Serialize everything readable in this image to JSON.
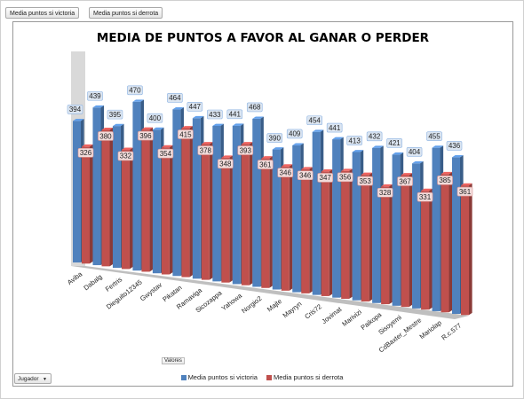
{
  "filter_buttons": {
    "victory": "Media puntos si victoria",
    "defeat": "Media puntos si derrota"
  },
  "colors": {
    "victory": "#4f81bd",
    "defeat": "#c0504d",
    "wall": "#d9d9d9",
    "floor": "#bfbfbf"
  },
  "chart_data": {
    "type": "bar",
    "title": "MEDIA DE PUNTOS A FAVOR AL GANAR O PERDER",
    "categories": [
      "Aviba",
      "Dabalg",
      "Fertris",
      "Dieguito12345",
      "Gwystav",
      "Pikatan",
      "Ramaviga",
      "Sicozappa",
      "Yahowa",
      "Norgio2",
      "Majte",
      "Mayryn",
      "Cris72",
      "Jovimat",
      "Marivizi",
      "Paikopa",
      "Sisoyemi",
      "CdBaxter_Mestre",
      "Mariolap",
      "R.c.577"
    ],
    "series": [
      {
        "name": "Media puntos si victoria",
        "values": [
          394,
          439,
          395,
          470,
          400,
          464,
          447,
          433,
          441,
          468,
          390,
          409,
          454,
          441,
          413,
          432,
          421,
          404,
          455,
          436
        ]
      },
      {
        "name": "Media puntos si derrota",
        "values": [
          326,
          380,
          332,
          396,
          354,
          415,
          378,
          348,
          393,
          361,
          346,
          346,
          347,
          356,
          353,
          328,
          367,
          331,
          385,
          361
        ]
      }
    ],
    "ylim": [
      0,
      500
    ],
    "grid": false,
    "legend": "bottom"
  },
  "axis_field": "Valores",
  "row_field": "Jugador"
}
